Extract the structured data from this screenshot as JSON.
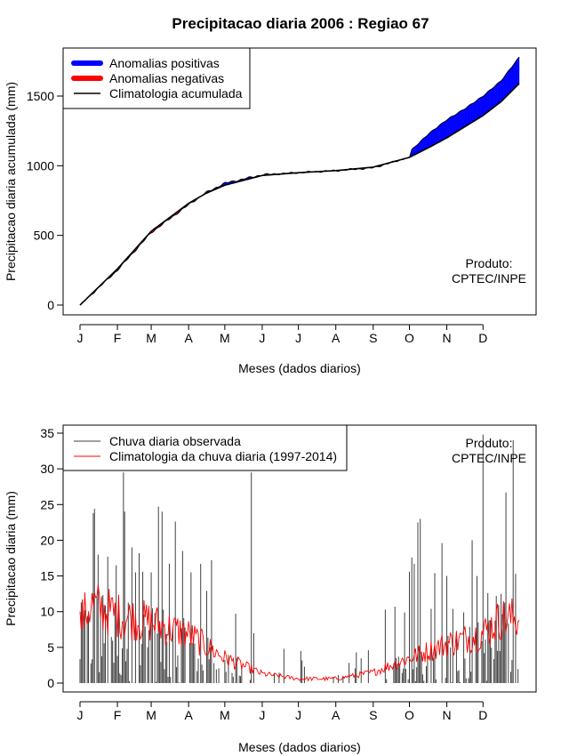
{
  "chart_data": [
    {
      "type": "area",
      "title": "Precipitacao diaria 2006 : Regiao 67",
      "xlabel": "Meses (dados diarios)",
      "ylabel": "Precipitacao diaria acumulada (mm)",
      "xlim": [
        1,
        365
      ],
      "ylim": [
        0,
        1780
      ],
      "ytick_values": [
        0,
        500,
        1000,
        1500
      ],
      "ytick_labels": [
        "0",
        "500",
        "1000",
        "1500"
      ],
      "month_labels": [
        "J",
        "F",
        "M",
        "A",
        "M",
        "J",
        "J",
        "A",
        "S",
        "O",
        "N",
        "D"
      ],
      "month_start_days": [
        1,
        32,
        60,
        91,
        121,
        152,
        182,
        213,
        244,
        274,
        305,
        335
      ],
      "legend": [
        "Anomalias positivas",
        "Anomalias negativas",
        "Climatologia acumulada"
      ],
      "legend_position": "top-left",
      "colors": {
        "positive": "#0000ff",
        "negative": "#ff0000",
        "climatology": "#000000"
      },
      "annotation": [
        "Produto:",
        "CPTEC/INPE"
      ],
      "climatology_knots": {
        "day": [
          1,
          32,
          60,
          91,
          105,
          121,
          152,
          182,
          213,
          244,
          274,
          290,
          305,
          320,
          335,
          350,
          365
        ],
        "value": [
          0,
          260,
          530,
          730,
          800,
          860,
          930,
          950,
          965,
          990,
          1060,
          1130,
          1200,
          1280,
          1360,
          1460,
          1590
        ]
      },
      "observed_knots": {
        "day": [
          1,
          32,
          60,
          91,
          105,
          121,
          152,
          182,
          213,
          244,
          274,
          276,
          290,
          305,
          320,
          335,
          350,
          365
        ],
        "value": [
          0,
          250,
          520,
          720,
          805,
          875,
          935,
          950,
          965,
          985,
          1060,
          1115,
          1230,
          1330,
          1410,
          1500,
          1610,
          1780
        ]
      }
    },
    {
      "type": "bar",
      "xlabel": "Meses (dados diarios)",
      "ylabel": "Precipitacao diaria (mm)",
      "xlim": [
        1,
        365
      ],
      "ylim": [
        -1.2,
        36
      ],
      "ytick_values": [
        0,
        5,
        10,
        15,
        20,
        25,
        30,
        35
      ],
      "ytick_labels": [
        "0",
        "5",
        "10",
        "15",
        "20",
        "25",
        "30",
        "35"
      ],
      "month_labels": [
        "J",
        "F",
        "M",
        "A",
        "M",
        "J",
        "J",
        "A",
        "S",
        "O",
        "N",
        "D"
      ],
      "month_start_days": [
        1,
        32,
        60,
        91,
        121,
        152,
        182,
        213,
        244,
        274,
        305,
        335
      ],
      "legend": [
        "Chuva diaria observada",
        "Climatologia da chuva diaria (1997-2014)"
      ],
      "legend_position": "top-left",
      "colors": {
        "observed": "#404040",
        "climatology": "#ff0000"
      },
      "annotation": [
        "Produto:",
        "CPTEC/INPE"
      ],
      "observed_peaks": [
        {
          "day": 2,
          "value": 11.3
        },
        {
          "day": 5,
          "value": 10.2
        },
        {
          "day": 12,
          "value": 23.8
        },
        {
          "day": 13,
          "value": 24.4
        },
        {
          "day": 16,
          "value": 18
        },
        {
          "day": 24,
          "value": 17.7
        },
        {
          "day": 31,
          "value": 16.5
        },
        {
          "day": 37,
          "value": 29.5
        },
        {
          "day": 38,
          "value": 24
        },
        {
          "day": 44,
          "value": 19
        },
        {
          "day": 47,
          "value": 15.5
        },
        {
          "day": 50,
          "value": 18.2
        },
        {
          "day": 53,
          "value": 15.6
        },
        {
          "day": 60,
          "value": 15.5
        },
        {
          "day": 66,
          "value": 24.7
        },
        {
          "day": 69,
          "value": 24
        },
        {
          "day": 75,
          "value": 16.7
        },
        {
          "day": 80,
          "value": 22.6
        },
        {
          "day": 86,
          "value": 18.5
        },
        {
          "day": 93,
          "value": 15.5
        },
        {
          "day": 101,
          "value": 16.7
        },
        {
          "day": 106,
          "value": 12.9
        },
        {
          "day": 110,
          "value": 17.2
        },
        {
          "day": 130,
          "value": 9.7
        },
        {
          "day": 143,
          "value": 29.5
        },
        {
          "day": 145,
          "value": 7
        },
        {
          "day": 170,
          "value": 4.8
        },
        {
          "day": 184,
          "value": 4.5
        },
        {
          "day": 230,
          "value": 4.3
        },
        {
          "day": 240,
          "value": 4.6
        },
        {
          "day": 254,
          "value": 10.3
        },
        {
          "day": 262,
          "value": 10.7
        },
        {
          "day": 270,
          "value": 9.9
        },
        {
          "day": 274,
          "value": 15.6
        },
        {
          "day": 276,
          "value": 17.6
        },
        {
          "day": 278,
          "value": 16.7
        },
        {
          "day": 281,
          "value": 22.5
        },
        {
          "day": 283,
          "value": 23
        },
        {
          "day": 292,
          "value": 10.4
        },
        {
          "day": 295,
          "value": 15.4
        },
        {
          "day": 301,
          "value": 19.6
        },
        {
          "day": 305,
          "value": 15
        },
        {
          "day": 310,
          "value": 10.4
        },
        {
          "day": 319,
          "value": 9.9
        },
        {
          "day": 326,
          "value": 20
        },
        {
          "day": 330,
          "value": 15
        },
        {
          "day": 335,
          "value": 34.8
        },
        {
          "day": 339,
          "value": 12.6
        },
        {
          "day": 346,
          "value": 12.2
        },
        {
          "day": 350,
          "value": 12.5
        },
        {
          "day": 354,
          "value": 26.7
        },
        {
          "day": 360,
          "value": 34
        },
        {
          "day": 362,
          "value": 15.3
        }
      ],
      "climatology_knots": {
        "day": [
          1,
          10,
          32,
          60,
          91,
          121,
          135,
          152,
          182,
          213,
          244,
          274,
          305,
          335,
          350,
          365
        ],
        "value": [
          8.5,
          11,
          9.5,
          8.5,
          6.8,
          3.5,
          2.5,
          1.3,
          0.6,
          0.6,
          1.5,
          3.5,
          5.5,
          7,
          9,
          9
        ]
      }
    }
  ]
}
